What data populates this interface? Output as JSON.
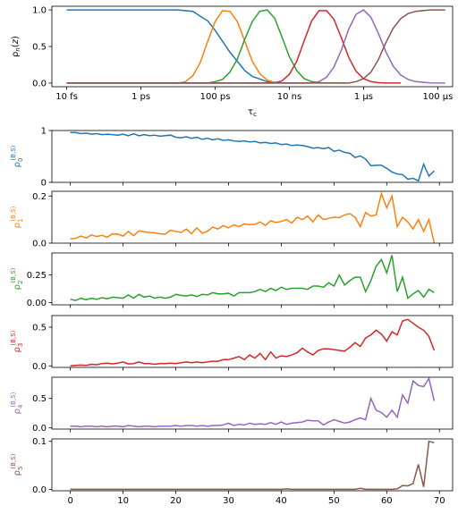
{
  "chart_data": [
    {
      "type": "line",
      "id": "basis",
      "title": "",
      "xlabel": "τ_c",
      "ylabel": "ρ_n(z)",
      "xscale": "log",
      "xlim": [
        -13.4,
        -2.6
      ],
      "ylim": [
        -0.05,
        1.05
      ],
      "xticks": [
        {
          "pos": -13,
          "label": "10 fs"
        },
        {
          "pos": -11,
          "label": "1 ps"
        },
        {
          "pos": -9,
          "label": "100 ps"
        },
        {
          "pos": -7,
          "label": "10 ns"
        },
        {
          "pos": -5,
          "label": "1 μs"
        },
        {
          "pos": -3,
          "label": "100 μs"
        }
      ],
      "yticks": [
        "0.0",
        "0.5",
        "1.0"
      ],
      "series": [
        {
          "color": "#1f77b4",
          "x": [
            -13,
            -10,
            -9.6,
            -9.2,
            -9.0,
            -8.6,
            -8.2,
            -8.0,
            -7.6,
            -7.2,
            -7.0
          ],
          "y": [
            1,
            1,
            0.98,
            0.85,
            0.72,
            0.42,
            0.17,
            0.09,
            0.02,
            0.003,
            0
          ]
        },
        {
          "color": "#ff7f0e",
          "x": [
            -13,
            -10,
            -9.8,
            -9.6,
            -9.4,
            -9.2,
            -9.0,
            -8.8,
            -8.6,
            -8.4,
            -8.2,
            -8.0,
            -7.8,
            -7.6,
            -7.4,
            -7.2,
            -7.0,
            -6.5
          ],
          "y": [
            0,
            0,
            0.02,
            0.1,
            0.28,
            0.57,
            0.84,
            0.99,
            0.98,
            0.84,
            0.57,
            0.3,
            0.13,
            0.04,
            0.01,
            0.002,
            0,
            0
          ]
        },
        {
          "color": "#2ca02c",
          "x": [
            -13,
            -9.2,
            -9.0,
            -8.8,
            -8.6,
            -8.4,
            -8.2,
            -8.0,
            -7.8,
            -7.6,
            -7.4,
            -7.2,
            -7.0,
            -6.8,
            -6.6,
            -6.4,
            -6.2,
            -6.0,
            -5.5
          ],
          "y": [
            0,
            0,
            0.02,
            0.05,
            0.15,
            0.33,
            0.6,
            0.84,
            0.98,
            1.0,
            0.89,
            0.63,
            0.36,
            0.17,
            0.06,
            0.02,
            0.005,
            0,
            0
          ]
        },
        {
          "color": "#d62728",
          "x": [
            -13,
            -7.4,
            -7.2,
            -7.0,
            -6.8,
            -6.6,
            -6.4,
            -6.2,
            -6.0,
            -5.8,
            -5.6,
            -5.4,
            -5.2,
            -5.0,
            -4.8,
            -4.6,
            -4.4,
            -4.0
          ],
          "y": [
            0,
            0,
            0.03,
            0.12,
            0.3,
            0.58,
            0.85,
            0.99,
            0.99,
            0.87,
            0.62,
            0.35,
            0.16,
            0.06,
            0.02,
            0.005,
            0,
            0
          ]
        },
        {
          "color": "#9467bd",
          "x": [
            -13,
            -6.4,
            -6.2,
            -6.0,
            -5.8,
            -5.6,
            -5.4,
            -5.2,
            -5.0,
            -4.8,
            -4.6,
            -4.4,
            -4.2,
            -4.0,
            -3.8,
            -3.6,
            -3.2,
            -2.8
          ],
          "y": [
            0,
            0,
            0.02,
            0.08,
            0.22,
            0.45,
            0.74,
            0.94,
            1.0,
            0.9,
            0.68,
            0.43,
            0.23,
            0.11,
            0.05,
            0.02,
            0.003,
            0
          ]
        },
        {
          "color": "#8c564b",
          "x": [
            -13,
            -5.4,
            -5.2,
            -5.0,
            -4.8,
            -4.6,
            -4.4,
            -4.2,
            -4.0,
            -3.8,
            -3.6,
            -3.4,
            -3.2,
            -3.0,
            -2.8
          ],
          "y": [
            0,
            0,
            0.02,
            0.06,
            0.15,
            0.32,
            0.55,
            0.75,
            0.88,
            0.95,
            0.98,
            0.99,
            1.0,
            1.0,
            1.0
          ]
        }
      ]
    },
    {
      "type": "line",
      "id": "rho0",
      "ylabel": "ρ_0^(B,S)",
      "color": "#1f77b4",
      "ylim": [
        0,
        1
      ],
      "yticks": [
        0,
        1
      ],
      "x": [
        0,
        1,
        2,
        3,
        4,
        5,
        6,
        7,
        8,
        9,
        10,
        11,
        12,
        13,
        14,
        15,
        16,
        17,
        18,
        19,
        20,
        21,
        22,
        23,
        24,
        25,
        26,
        27,
        28,
        29,
        30,
        31,
        32,
        33,
        34,
        35,
        36,
        37,
        38,
        39,
        40,
        41,
        42,
        43,
        44,
        45,
        46,
        47,
        48,
        49,
        50,
        51,
        52,
        53,
        54,
        55,
        56,
        57,
        58,
        59,
        60,
        61,
        62,
        63,
        64,
        65,
        66,
        67,
        68,
        69
      ],
      "values": [
        0.96,
        0.96,
        0.94,
        0.95,
        0.93,
        0.94,
        0.92,
        0.93,
        0.92,
        0.91,
        0.93,
        0.9,
        0.94,
        0.9,
        0.92,
        0.9,
        0.91,
        0.89,
        0.9,
        0.91,
        0.87,
        0.86,
        0.88,
        0.85,
        0.87,
        0.83,
        0.85,
        0.82,
        0.84,
        0.81,
        0.82,
        0.8,
        0.79,
        0.8,
        0.78,
        0.79,
        0.76,
        0.77,
        0.75,
        0.76,
        0.73,
        0.74,
        0.71,
        0.72,
        0.71,
        0.69,
        0.66,
        0.67,
        0.65,
        0.67,
        0.6,
        0.62,
        0.58,
        0.56,
        0.48,
        0.51,
        0.45,
        0.32,
        0.33,
        0.33,
        0.27,
        0.2,
        0.16,
        0.15,
        0.06,
        0.08,
        0.03,
        0.35,
        0.12,
        0.22
      ]
    },
    {
      "type": "line",
      "id": "rho1",
      "ylabel": "ρ_1^(B,S)",
      "color": "#ff7f0e",
      "ylim": [
        0,
        0.22
      ],
      "yticks": [
        0.0,
        0.2
      ],
      "x": [
        0,
        1,
        2,
        3,
        4,
        5,
        6,
        7,
        8,
        9,
        10,
        11,
        12,
        13,
        14,
        15,
        16,
        17,
        18,
        19,
        20,
        21,
        22,
        23,
        24,
        25,
        26,
        27,
        28,
        29,
        30,
        31,
        32,
        33,
        34,
        35,
        36,
        37,
        38,
        39,
        40,
        41,
        42,
        43,
        44,
        45,
        46,
        47,
        48,
        49,
        50,
        51,
        52,
        53,
        54,
        55,
        56,
        57,
        58,
        59,
        60,
        61,
        62,
        63,
        64,
        65,
        66,
        67,
        68,
        69
      ],
      "values": [
        0.018,
        0.02,
        0.03,
        0.022,
        0.035,
        0.028,
        0.033,
        0.025,
        0.04,
        0.038,
        0.03,
        0.05,
        0.032,
        0.052,
        0.048,
        0.045,
        0.044,
        0.04,
        0.038,
        0.055,
        0.05,
        0.045,
        0.06,
        0.04,
        0.065,
        0.042,
        0.05,
        0.068,
        0.06,
        0.075,
        0.065,
        0.078,
        0.07,
        0.082,
        0.078,
        0.08,
        0.09,
        0.075,
        0.095,
        0.088,
        0.092,
        0.1,
        0.085,
        0.11,
        0.1,
        0.115,
        0.09,
        0.12,
        0.1,
        0.105,
        0.11,
        0.108,
        0.12,
        0.125,
        0.11,
        0.07,
        0.13,
        0.115,
        0.12,
        0.21,
        0.15,
        0.2,
        0.07,
        0.11,
        0.09,
        0.06,
        0.1,
        0.05,
        0.1,
        0.0
      ]
    },
    {
      "type": "line",
      "id": "rho2",
      "ylabel": "ρ_2^(B,S)",
      "color": "#2ca02c",
      "ylim": [
        -0.02,
        0.45
      ],
      "yticks": [
        0.0,
        0.25
      ],
      "x": [
        0,
        1,
        2,
        3,
        4,
        5,
        6,
        7,
        8,
        9,
        10,
        11,
        12,
        13,
        14,
        15,
        16,
        17,
        18,
        19,
        20,
        21,
        22,
        23,
        24,
        25,
        26,
        27,
        28,
        29,
        30,
        31,
        32,
        33,
        34,
        35,
        36,
        37,
        38,
        39,
        40,
        41,
        42,
        43,
        44,
        45,
        46,
        47,
        48,
        49,
        50,
        51,
        52,
        53,
        54,
        55,
        56,
        57,
        58,
        59,
        60,
        61,
        62,
        63,
        64,
        65,
        66,
        67,
        68,
        69
      ],
      "values": [
        0.03,
        0.02,
        0.04,
        0.025,
        0.04,
        0.03,
        0.045,
        0.035,
        0.05,
        0.045,
        0.04,
        0.07,
        0.04,
        0.075,
        0.05,
        0.06,
        0.04,
        0.05,
        0.04,
        0.05,
        0.075,
        0.065,
        0.06,
        0.07,
        0.055,
        0.075,
        0.07,
        0.09,
        0.08,
        0.08,
        0.085,
        0.06,
        0.09,
        0.09,
        0.09,
        0.1,
        0.12,
        0.1,
        0.13,
        0.11,
        0.14,
        0.12,
        0.13,
        0.13,
        0.13,
        0.12,
        0.15,
        0.15,
        0.14,
        0.18,
        0.15,
        0.25,
        0.16,
        0.2,
        0.23,
        0.23,
        0.1,
        0.2,
        0.33,
        0.39,
        0.27,
        0.43,
        0.1,
        0.23,
        0.04,
        0.08,
        0.11,
        0.05,
        0.12,
        0.09
      ]
    },
    {
      "type": "line",
      "id": "rho3",
      "ylabel": "ρ_3^(B,S)",
      "color": "#d62728",
      "ylim": [
        -0.02,
        0.65
      ],
      "yticks": [
        0.0,
        0.5
      ],
      "x": [
        0,
        1,
        2,
        3,
        4,
        5,
        6,
        7,
        8,
        9,
        10,
        11,
        12,
        13,
        14,
        15,
        16,
        17,
        18,
        19,
        20,
        21,
        22,
        23,
        24,
        25,
        26,
        27,
        28,
        29,
        30,
        31,
        32,
        33,
        34,
        35,
        36,
        37,
        38,
        39,
        40,
        41,
        42,
        43,
        44,
        45,
        46,
        47,
        48,
        49,
        50,
        51,
        52,
        53,
        54,
        55,
        56,
        57,
        58,
        59,
        60,
        61,
        62,
        63,
        64,
        65,
        66,
        67,
        68,
        69
      ],
      "values": [
        0.0,
        0.005,
        0.01,
        0.005,
        0.02,
        0.015,
        0.03,
        0.035,
        0.025,
        0.035,
        0.05,
        0.025,
        0.03,
        0.05,
        0.03,
        0.03,
        0.02,
        0.03,
        0.03,
        0.035,
        0.03,
        0.04,
        0.05,
        0.04,
        0.05,
        0.04,
        0.05,
        0.06,
        0.06,
        0.08,
        0.08,
        0.1,
        0.12,
        0.08,
        0.14,
        0.1,
        0.16,
        0.08,
        0.18,
        0.1,
        0.13,
        0.12,
        0.14,
        0.17,
        0.23,
        0.18,
        0.14,
        0.2,
        0.22,
        0.22,
        0.21,
        0.2,
        0.19,
        0.24,
        0.3,
        0.25,
        0.36,
        0.4,
        0.46,
        0.41,
        0.32,
        0.44,
        0.4,
        0.58,
        0.6,
        0.55,
        0.5,
        0.46,
        0.38,
        0.2
      ]
    },
    {
      "type": "line",
      "id": "rho4",
      "ylabel": "ρ_4^(B,S)",
      "color": "#9467bd",
      "ylim": [
        -0.02,
        0.86
      ],
      "yticks": [
        0.0,
        0.5
      ],
      "x": [
        0,
        1,
        2,
        3,
        4,
        5,
        6,
        7,
        8,
        9,
        10,
        11,
        12,
        13,
        14,
        15,
        16,
        17,
        18,
        19,
        20,
        21,
        22,
        23,
        24,
        25,
        26,
        27,
        28,
        29,
        30,
        31,
        32,
        33,
        34,
        35,
        36,
        37,
        38,
        39,
        40,
        41,
        42,
        43,
        44,
        45,
        46,
        47,
        48,
        49,
        50,
        51,
        52,
        53,
        54,
        55,
        56,
        57,
        58,
        59,
        60,
        61,
        62,
        63,
        64,
        65,
        66,
        67,
        68,
        69
      ],
      "values": [
        0.03,
        0.03,
        0.02,
        0.03,
        0.03,
        0.02,
        0.03,
        0.02,
        0.03,
        0.03,
        0.02,
        0.04,
        0.03,
        0.02,
        0.03,
        0.03,
        0.02,
        0.03,
        0.03,
        0.03,
        0.04,
        0.03,
        0.04,
        0.04,
        0.03,
        0.04,
        0.03,
        0.04,
        0.04,
        0.05,
        0.08,
        0.04,
        0.06,
        0.05,
        0.08,
        0.06,
        0.07,
        0.06,
        0.09,
        0.06,
        0.1,
        0.06,
        0.08,
        0.09,
        0.1,
        0.13,
        0.12,
        0.12,
        0.05,
        0.1,
        0.14,
        0.11,
        0.08,
        0.1,
        0.14,
        0.17,
        0.14,
        0.5,
        0.3,
        0.26,
        0.18,
        0.3,
        0.18,
        0.56,
        0.42,
        0.8,
        0.72,
        0.7,
        0.84,
        0.46
      ]
    },
    {
      "type": "line",
      "id": "rho5",
      "ylabel": "ρ_5^(B,S)",
      "color": "#8c564b",
      "ylim": [
        -0.003,
        0.105
      ],
      "yticks": [
        0.0,
        0.1
      ],
      "xlabel_ticks": [
        0,
        10,
        20,
        30,
        40,
        50,
        60,
        70
      ],
      "x": [
        0,
        1,
        2,
        3,
        4,
        5,
        6,
        7,
        8,
        9,
        10,
        11,
        12,
        13,
        14,
        15,
        16,
        17,
        18,
        19,
        20,
        21,
        22,
        23,
        24,
        25,
        26,
        27,
        28,
        29,
        30,
        31,
        32,
        33,
        34,
        35,
        36,
        37,
        38,
        39,
        40,
        41,
        42,
        43,
        44,
        45,
        46,
        47,
        48,
        49,
        50,
        51,
        52,
        53,
        54,
        55,
        56,
        57,
        58,
        59,
        60,
        61,
        62,
        63,
        64,
        65,
        66,
        67,
        68,
        69
      ],
      "values": [
        0,
        0,
        0,
        0,
        0,
        0,
        0,
        0,
        0,
        0,
        0,
        0,
        0,
        0,
        0,
        0,
        0,
        0,
        0,
        0,
        0,
        0,
        0,
        0,
        0,
        0,
        0,
        0,
        0,
        0,
        0,
        0,
        0,
        0,
        0,
        0,
        0,
        0,
        0,
        0,
        0,
        0.001,
        0,
        0,
        0,
        0,
        0,
        0,
        0,
        0,
        0,
        0,
        0,
        0,
        0,
        0.002,
        0,
        0,
        0,
        0,
        0,
        0,
        0.001,
        0.008,
        0.007,
        0.012,
        0.052,
        0.005,
        0.1,
        0.097
      ]
    }
  ]
}
